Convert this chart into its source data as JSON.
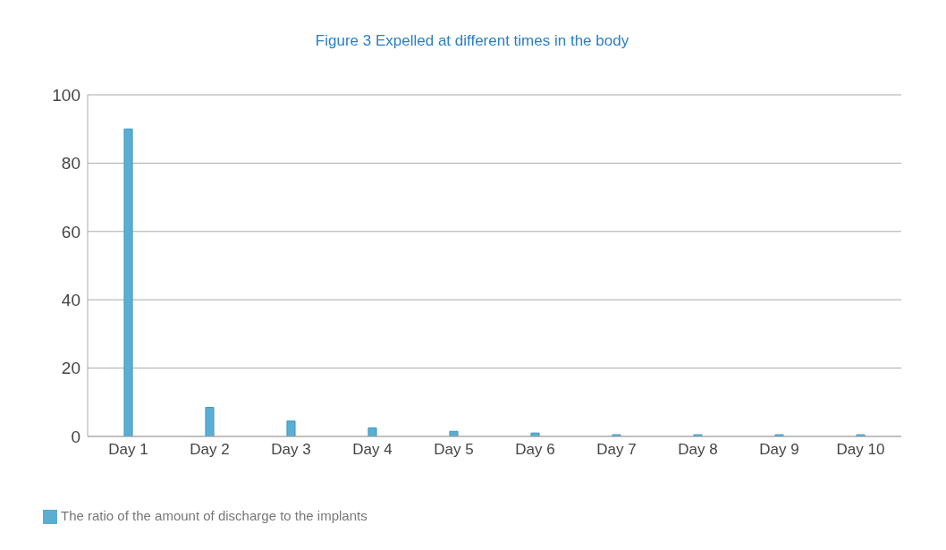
{
  "chart_data": {
    "type": "bar",
    "title": "Figure 3 Expelled at different times in the body",
    "categories": [
      "Day 1",
      "Day 2",
      "Day 3",
      "Day 4",
      "Day 5",
      "Day 6",
      "Day 7",
      "Day 8",
      "Day 9",
      "Day 10"
    ],
    "series": [
      {
        "name": "The ratio of the amount of discharge to the implants",
        "color": "#5aaed3",
        "values": [
          90,
          8.5,
          4.5,
          2.5,
          1.5,
          1,
          0.5,
          0.5,
          0.5,
          0.5
        ]
      }
    ],
    "ylim": [
      0,
      100
    ],
    "yticks": [
      0,
      20,
      40,
      60,
      80,
      100
    ],
    "grid": "y",
    "legend": "bottom left"
  }
}
